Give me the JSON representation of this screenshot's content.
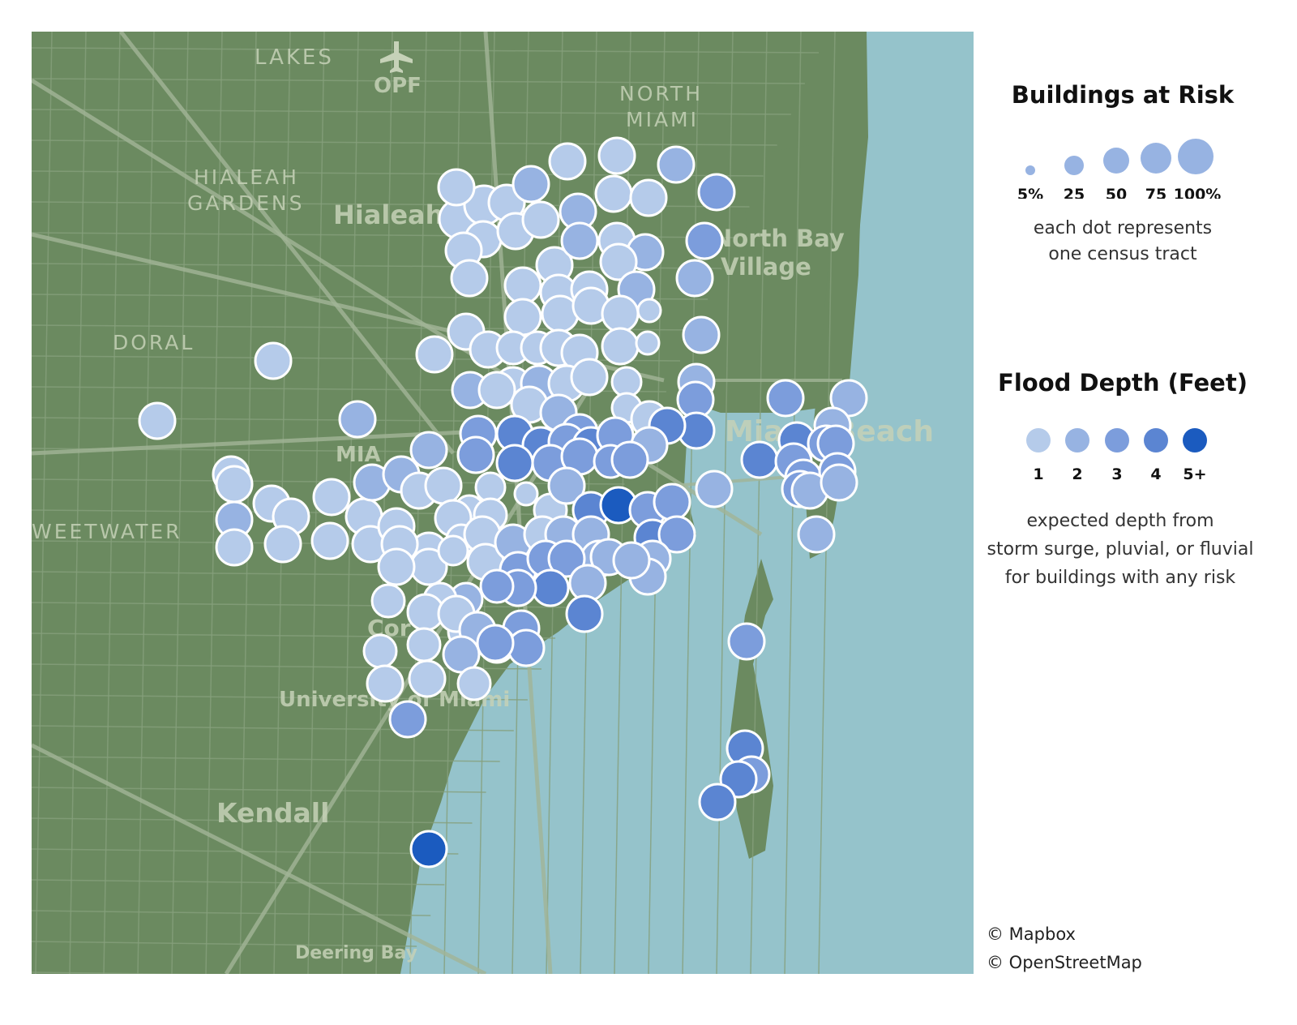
{
  "map": {
    "colors": {
      "land": "#6b8a60",
      "water": "#95c3cb",
      "road": "#86a07c",
      "major_road": "#a2b597",
      "dot_stroke": "#ffffff"
    },
    "place_labels": [
      {
        "name": "MIAMI LAKES",
        "text": "LAKES"
      },
      {
        "name": "OPF",
        "text": "OPF"
      },
      {
        "name": "NORTH",
        "text": "NORTH"
      },
      {
        "name": "MIAMI",
        "text": "MIAMI"
      },
      {
        "name": "HIALEAH",
        "text": "HIALEAH"
      },
      {
        "name": "GARDENS",
        "text": "GARDENS"
      },
      {
        "name": "Hialeah",
        "text": "Hialeah"
      },
      {
        "name": "North Bay",
        "text": "North Bay"
      },
      {
        "name": "Village",
        "text": "Village"
      },
      {
        "name": "DORAL",
        "text": "DORAL"
      },
      {
        "name": "MIA",
        "text": "MIA"
      },
      {
        "name": "Miami Beach",
        "text": "Miami Beach"
      },
      {
        "name": "SWEETWATER",
        "text": "WEETWATER"
      },
      {
        "name": "Coral",
        "text": "Cor"
      },
      {
        "name": "University",
        "text": "University of Miami"
      },
      {
        "name": "Kendall",
        "text": "Kendall"
      },
      {
        "name": "Deering Bay",
        "text": "Deering Bay"
      }
    ]
  },
  "legend": {
    "size_title": "Buildings at Risk",
    "size_ticks": [
      "5%",
      "25",
      "50",
      "75",
      "100%"
    ],
    "size_note_line1": "each dot represents",
    "size_note_line2": "one census tract",
    "depth_title": "Flood Depth (Feet)",
    "depth_ticks": [
      "1",
      "2",
      "3",
      "4",
      "5+"
    ],
    "depth_colors": [
      "#b5cbea",
      "#97b3e2",
      "#7c9ddc",
      "#5b85d2",
      "#1b5bbf"
    ],
    "depth_note_line1": "expected depth from",
    "depth_note_line2": "storm surge, pluvial, or fluvial",
    "depth_note_line3": "for buildings with any risk"
  },
  "attribution": {
    "mapbox": "© Mapbox",
    "osm": "© OpenStreetMap"
  }
}
